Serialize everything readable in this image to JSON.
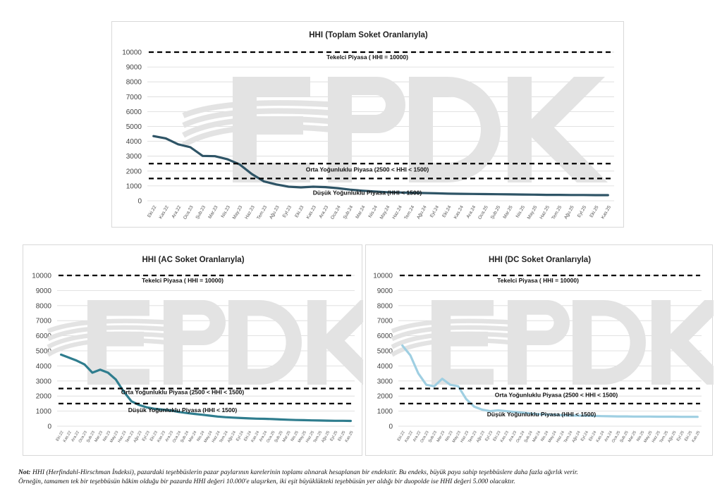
{
  "footnote": {
    "label": "Not:",
    "line1": "HHI (Herfindahl-Hirschman İndeksi), pazardaki teşebbüslerin pazar paylarının karelerinin toplamı alınarak hesaplanan bir endekstir. Bu endeks, büyük paya sahip teşebbüslere daha fazla ağırlık verir.",
    "line2": "Örneğin, tamamen tek bir teşebbüsün hâkim olduğu bir pazarda HHI değeri 10.000'e ulaşırken, iki eşit büyüklükteki teşebbüsün yer aldığı bir duopolde ise HHI değeri 5.000 olacaktır."
  },
  "watermark": {
    "text": "EPDK",
    "color": "#e3e3e3"
  },
  "chart_data": [
    {
      "id": "total",
      "type": "line",
      "title": "HHI (Toplam Soket Oranlarıyla)",
      "ylim": [
        0,
        10000
      ],
      "yticks": [
        "0",
        "1000",
        "2000",
        "3000",
        "4000",
        "5000",
        "6000",
        "7000",
        "8000",
        "9000",
        "10000"
      ],
      "grid": true,
      "categories": [
        "Eki.22",
        "Kas.22",
        "Ara.22",
        "Oca.23",
        "Şub.23",
        "Mar.23",
        "Nis.23",
        "May.23",
        "Haz.23",
        "Tem.23",
        "Ağu.23",
        "Eyl.23",
        "Eki.23",
        "Kas.23",
        "Ara.23",
        "Oca.24",
        "Şub.24",
        "Mar.24",
        "Nis.24",
        "May.24",
        "Haz.24",
        "Tem.24",
        "Ağu.24",
        "Eyl.24",
        "Eki.24",
        "Kas.24",
        "Ara.24",
        "Oca.25",
        "Şub.25",
        "Mar.25",
        "Nis.25",
        "May.25",
        "Haz.25",
        "Tem.25",
        "Ağu.25",
        "Eyl.25",
        "Eki.25",
        "Kas.25"
      ],
      "series": [
        {
          "color": "#2e5466",
          "values": [
            4350,
            4200,
            3800,
            3600,
            3020,
            3000,
            2800,
            2450,
            1800,
            1300,
            1100,
            950,
            900,
            950,
            920,
            850,
            750,
            680,
            620,
            580,
            560,
            540,
            520,
            500,
            480,
            470,
            460,
            450,
            440,
            430,
            420,
            410,
            400,
            400,
            390,
            390,
            380,
            380
          ]
        }
      ],
      "reference_lines": [
        {
          "value": 10000,
          "label": "Tekelci Piyasa ( HHI = 10000)"
        },
        {
          "value": 2500,
          "label": "Orta Yoğunluklu Piyasa (2500 < HHI < 1500)"
        },
        {
          "value": 1500,
          "label": "Düşük Yoğunluklu Piyasa (HHI < 1500)"
        }
      ]
    },
    {
      "id": "ac",
      "type": "line",
      "title": "HHI (AC Soket Oranlarıyla)",
      "ylim": [
        0,
        10000
      ],
      "yticks": [
        "0",
        "1000",
        "2000",
        "3000",
        "4000",
        "5000",
        "6000",
        "7000",
        "8000",
        "9000",
        "10000"
      ],
      "grid": true,
      "categories": [
        "Eki.22",
        "Kas.22",
        "Ara.22",
        "Oca.23",
        "Şub.23",
        "Mar.23",
        "Nis.23",
        "May.23",
        "Haz.23",
        "Tem.23",
        "Ağu.23",
        "Eyl.23",
        "Eki.23",
        "Kas.23",
        "Ara.23",
        "Oca.24",
        "Şub.24",
        "Mar.24",
        "Nis.24",
        "May.24",
        "Haz.24",
        "Tem.24",
        "Ağu.24",
        "Eyl.24",
        "Eki.24",
        "Kas.24",
        "Ara.24",
        "Oca.25",
        "Şub.25",
        "Mar.25",
        "Nis.25",
        "May.25",
        "Haz.25",
        "Tem.25",
        "Ağu.25",
        "Eyl.25",
        "Eki.25",
        "Kas.25"
      ],
      "series": [
        {
          "color": "#2f7d8e",
          "values": [
            4750,
            4550,
            4350,
            4100,
            3550,
            3750,
            3550,
            3100,
            2300,
            1650,
            1400,
            1250,
            1150,
            1100,
            1050,
            950,
            880,
            820,
            760,
            700,
            640,
            600,
            570,
            540,
            520,
            500,
            490,
            470,
            450,
            430,
            410,
            400,
            390,
            380,
            370,
            360,
            360,
            350
          ]
        }
      ],
      "reference_lines": [
        {
          "value": 10000,
          "label": "Tekelci Piyasa ( HHI = 10000)"
        },
        {
          "value": 2500,
          "label": "Orta Yoğunluklu Piyasa (2500 < HHI < 1500)"
        },
        {
          "value": 1500,
          "label": "Düşük Yoğunluklu Piyasa (HHI < 1500)"
        }
      ]
    },
    {
      "id": "dc",
      "type": "line",
      "title": "HHI (DC Soket Oranlarıyla)",
      "ylim": [
        0,
        10000
      ],
      "yticks": [
        "0",
        "1000",
        "2000",
        "3000",
        "4000",
        "5000",
        "6000",
        "7000",
        "8000",
        "9000",
        "10000"
      ],
      "grid": true,
      "categories": [
        "Eki.22",
        "Kas.22",
        "Ara.22",
        "Oca.23",
        "Şub.23",
        "Mar.23",
        "Nis.23",
        "May.23",
        "Haz.23",
        "Tem.23",
        "Ağu.23",
        "Eyl.23",
        "Eki.23",
        "Kas.23",
        "Ara.23",
        "Oca.24",
        "Şub.24",
        "Mar.24",
        "Nis.24",
        "May.24",
        "Haz.24",
        "Tem.24",
        "Ağu.24",
        "Eyl.24",
        "Eki.24",
        "Kas.24",
        "Ara.24",
        "Oca.25",
        "Şub.25",
        "Mar.25",
        "Nis.25",
        "May.25",
        "Haz.25",
        "Tem.25",
        "Ağu.25",
        "Eyl.25",
        "Eki.25",
        "Kas.25"
      ],
      "series": [
        {
          "color": "#9fcfe2",
          "values": [
            5350,
            4700,
            3500,
            2750,
            2650,
            3150,
            2750,
            2650,
            1800,
            1300,
            1100,
            1000,
            1050,
            1000,
            950,
            900,
            850,
            800,
            780,
            750,
            730,
            710,
            700,
            690,
            680,
            670,
            660,
            650,
            650,
            640,
            640,
            640,
            630,
            630,
            630,
            620,
            620,
            620
          ]
        }
      ],
      "reference_lines": [
        {
          "value": 10000,
          "label": "Tekelci Piyasa ( HHI = 10000)"
        },
        {
          "value": 2500,
          "label": "Orta Yoğunluklu Piyasa (2500 < HHI < 1500)"
        },
        {
          "value": 1500,
          "label": "Düşük Yoğunluklu Piyasa (HHI < 1500)"
        }
      ]
    }
  ]
}
